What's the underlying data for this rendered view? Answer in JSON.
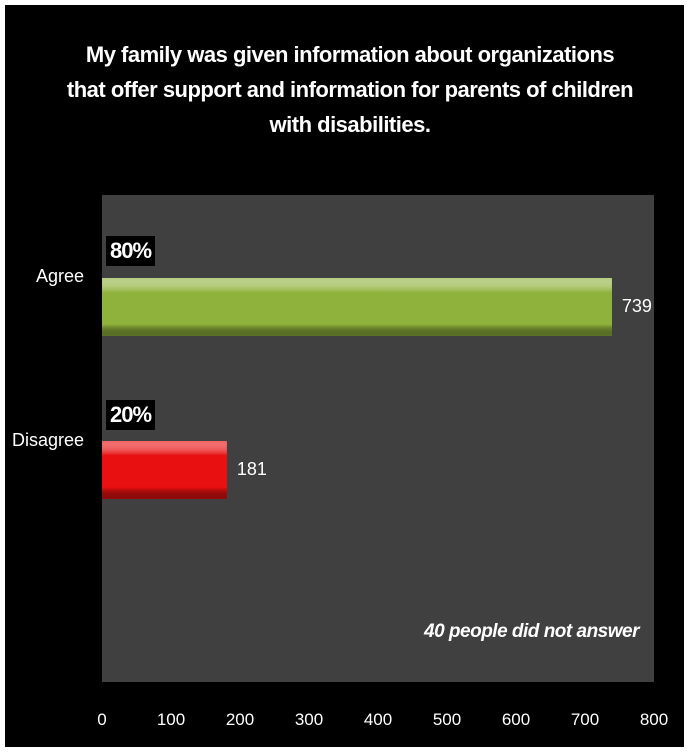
{
  "chart_data": {
    "type": "bar",
    "orientation": "horizontal",
    "title": "My family was given information about organizations that offer support and information for parents of children with disabilities.",
    "categories": [
      "Agree",
      "Disagree"
    ],
    "values": [
      739,
      181
    ],
    "percent_labels": [
      "80%",
      "20%"
    ],
    "bar_colors": [
      "#8fb23c",
      "#e81010"
    ],
    "xlim": [
      0,
      800
    ],
    "x_ticks": [
      "0",
      "100",
      "200",
      "300",
      "400",
      "500",
      "600",
      "700",
      "800"
    ],
    "grid": false,
    "annotation": "40 people did not answer",
    "colors": {
      "background": "#000000",
      "plot_background": "#404040",
      "text": "#ffffff"
    }
  }
}
